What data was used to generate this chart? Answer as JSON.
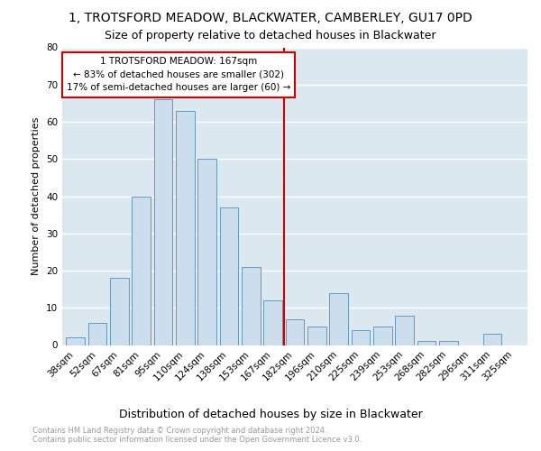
{
  "title": "1, TROTSFORD MEADOW, BLACKWATER, CAMBERLEY, GU17 0PD",
  "subtitle": "Size of property relative to detached houses in Blackwater",
  "xlabel": "Distribution of detached houses by size in Blackwater",
  "ylabel": "Number of detached properties",
  "bar_labels": [
    "38sqm",
    "52sqm",
    "67sqm",
    "81sqm",
    "95sqm",
    "110sqm",
    "124sqm",
    "138sqm",
    "153sqm",
    "167sqm",
    "182sqm",
    "196sqm",
    "210sqm",
    "225sqm",
    "239sqm",
    "253sqm",
    "268sqm",
    "282sqm",
    "296sqm",
    "311sqm",
    "325sqm"
  ],
  "bar_values": [
    2,
    6,
    18,
    40,
    66,
    63,
    50,
    37,
    21,
    12,
    7,
    5,
    14,
    4,
    5,
    8,
    1,
    1,
    0,
    3,
    0
  ],
  "bar_color": "#ccdded",
  "bar_edge_color": "#6699bb",
  "vline_index": 9.5,
  "vline_color": "#cc0000",
  "annotation_title": "1 TROTSFORD MEADOW: 167sqm",
  "annotation_line1": "← 83% of detached houses are smaller (302)",
  "annotation_line2": "17% of semi-detached houses are larger (60) →",
  "annotation_box_color": "#cc0000",
  "annotation_bg": "#ffffff",
  "footer_line1": "Contains HM Land Registry data © Crown copyright and database right 2024.",
  "footer_line2": "Contains public sector information licensed under the Open Government Licence v3.0.",
  "ylim": [
    0,
    80
  ],
  "yticks": [
    0,
    10,
    20,
    30,
    40,
    50,
    60,
    70,
    80
  ],
  "bg_color": "#dce8f0",
  "fig_bg": "#ffffff",
  "title_fontsize": 10,
  "subtitle_fontsize": 9,
  "xlabel_fontsize": 9,
  "ylabel_fontsize": 8,
  "tick_fontsize": 7.5,
  "annotation_fontsize": 7.5,
  "footer_fontsize": 6
}
